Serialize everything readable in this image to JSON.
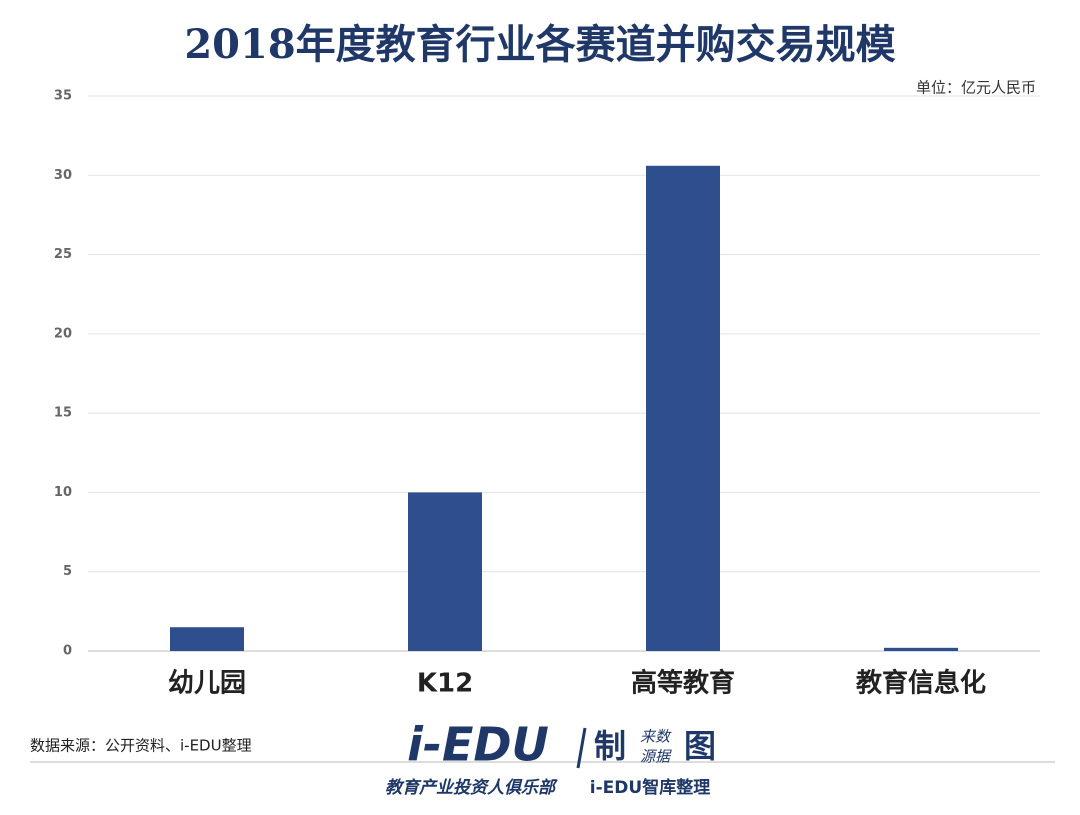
{
  "chart_data": {
    "type": "bar",
    "title": "2018年度教育行业各赛道并购交易规模",
    "unit": "单位：亿元人民币",
    "source": "数据来源：公开资料、i-EDU整理",
    "categories": [
      "幼儿园",
      "K12",
      "高等教育",
      "教育信息化"
    ],
    "values": [
      1.5,
      10,
      30.6,
      0.2
    ],
    "color": "#2e4e8e",
    "ylim": [
      0,
      35
    ],
    "yticks": [
      0,
      5,
      10,
      15,
      20,
      25,
      30,
      35
    ],
    "grid": true
  },
  "footer": {
    "logo": "i-EDU",
    "made": "制",
    "source_top": "来数",
    "source_bottom": "源据",
    "chart": "图",
    "club": "教育产业投资人俱乐部",
    "credit": "i-EDU智库整理"
  }
}
